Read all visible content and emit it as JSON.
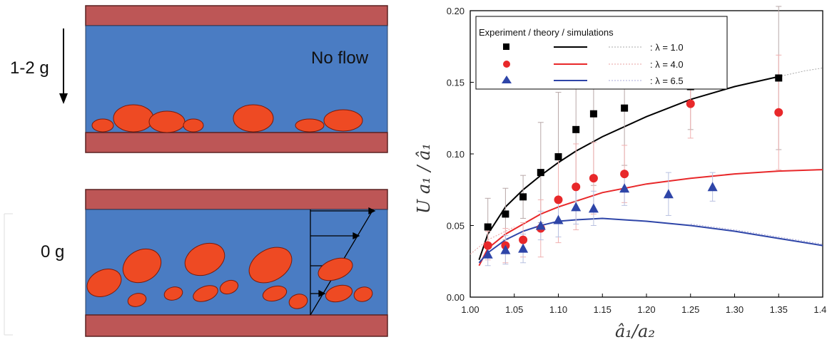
{
  "figure": {
    "panel_top": {
      "gravity_label": "1-2 g",
      "flow_label": "No flow"
    },
    "panel_bottom": {
      "gravity_label": "0 g"
    },
    "colors": {
      "wall": "#bd5656",
      "fluid": "#4a7cc3",
      "drop": "#ee4a23"
    }
  },
  "chart_data": {
    "type": "scatter",
    "xlabel": "â₁/a₂",
    "ylabel": "U a₁ / â₁",
    "xlim": [
      1.0,
      1.4
    ],
    "ylim": [
      0.0,
      0.2
    ],
    "x_ticks": [
      "1.00",
      "1.05",
      "1.10",
      "1.15",
      "1.20",
      "1.25",
      "1.30",
      "1.35",
      "1.40"
    ],
    "y_ticks": [
      "0.00",
      "0.05",
      "0.10",
      "0.15",
      "0.20"
    ],
    "x_tick_values": [
      1.0,
      1.05,
      1.1,
      1.15,
      1.2,
      1.25,
      1.3,
      1.35,
      1.4
    ],
    "y_tick_values": [
      0.0,
      0.05,
      0.1,
      0.15,
      0.2
    ],
    "legend": {
      "header": "Experiment / theory  / simulations",
      "position": "top-left",
      "entries": [
        ": λ = 1.0",
        ": λ = 4.0",
        ": λ = 6.5"
      ]
    },
    "series": [
      {
        "marker": "square",
        "color": "#000000",
        "x": [
          1.02,
          1.04,
          1.06,
          1.08,
          1.1,
          1.12,
          1.14,
          1.175,
          1.25,
          1.35
        ],
        "y": [
          0.049,
          0.058,
          0.07,
          0.087,
          0.098,
          0.117,
          0.128,
          0.132,
          0.147,
          0.153
        ],
        "err": [
          0.02,
          0.018,
          0.015,
          0.035,
          0.045,
          0.05,
          0.05,
          0.04,
          0.03,
          0.05
        ],
        "theory": [
          [
            1.01,
            0.026
          ],
          [
            1.02,
            0.044
          ],
          [
            1.04,
            0.063
          ],
          [
            1.06,
            0.075
          ],
          [
            1.08,
            0.085
          ],
          [
            1.1,
            0.094
          ],
          [
            1.12,
            0.102
          ],
          [
            1.15,
            0.112
          ],
          [
            1.2,
            0.126
          ],
          [
            1.25,
            0.138
          ],
          [
            1.3,
            0.147
          ],
          [
            1.35,
            0.154
          ]
        ],
        "sim": [
          [
            1.35,
            0.154
          ],
          [
            1.38,
            0.158
          ],
          [
            1.4,
            0.16
          ]
        ]
      },
      {
        "marker": "circle",
        "color": "#e8282a",
        "x": [
          1.02,
          1.04,
          1.06,
          1.08,
          1.1,
          1.12,
          1.14,
          1.175,
          1.25,
          1.35
        ],
        "y": [
          0.036,
          0.036,
          0.04,
          0.048,
          0.068,
          0.077,
          0.083,
          0.086,
          0.135,
          0.129
        ],
        "err": [
          0.01,
          0.012,
          0.012,
          0.02,
          0.03,
          0.03,
          0.025,
          0.02,
          0.024,
          0.04
        ],
        "theory": [
          [
            1.01,
            0.022
          ],
          [
            1.02,
            0.034
          ],
          [
            1.04,
            0.044
          ],
          [
            1.06,
            0.051
          ],
          [
            1.08,
            0.058
          ],
          [
            1.1,
            0.063
          ],
          [
            1.12,
            0.067
          ],
          [
            1.15,
            0.073
          ],
          [
            1.2,
            0.079
          ],
          [
            1.25,
            0.083
          ],
          [
            1.3,
            0.086
          ],
          [
            1.35,
            0.088
          ],
          [
            1.4,
            0.089
          ]
        ],
        "sim": [
          [
            1.0,
            0.03
          ],
          [
            1.02,
            0.04
          ],
          [
            1.05,
            0.049
          ]
        ]
      },
      {
        "marker": "triangle",
        "color": "#2e45a8",
        "x": [
          1.02,
          1.04,
          1.06,
          1.08,
          1.1,
          1.12,
          1.14,
          1.175,
          1.225,
          1.275
        ],
        "y": [
          0.03,
          0.033,
          0.034,
          0.05,
          0.054,
          0.063,
          0.062,
          0.076,
          0.072,
          0.077
        ],
        "err": [
          0.008,
          0.01,
          0.01,
          0.01,
          0.012,
          0.012,
          0.012,
          0.012,
          0.015,
          0.01
        ],
        "theory": [
          [
            1.01,
            0.024
          ],
          [
            1.02,
            0.031
          ],
          [
            1.04,
            0.04
          ],
          [
            1.06,
            0.046
          ],
          [
            1.08,
            0.05
          ],
          [
            1.1,
            0.053
          ],
          [
            1.12,
            0.054
          ],
          [
            1.15,
            0.055
          ],
          [
            1.2,
            0.053
          ],
          [
            1.25,
            0.05
          ],
          [
            1.3,
            0.046
          ],
          [
            1.35,
            0.041
          ],
          [
            1.4,
            0.036
          ]
        ],
        "sim": [
          [
            1.25,
            0.051
          ],
          [
            1.3,
            0.047
          ],
          [
            1.4,
            0.037
          ]
        ]
      }
    ]
  }
}
